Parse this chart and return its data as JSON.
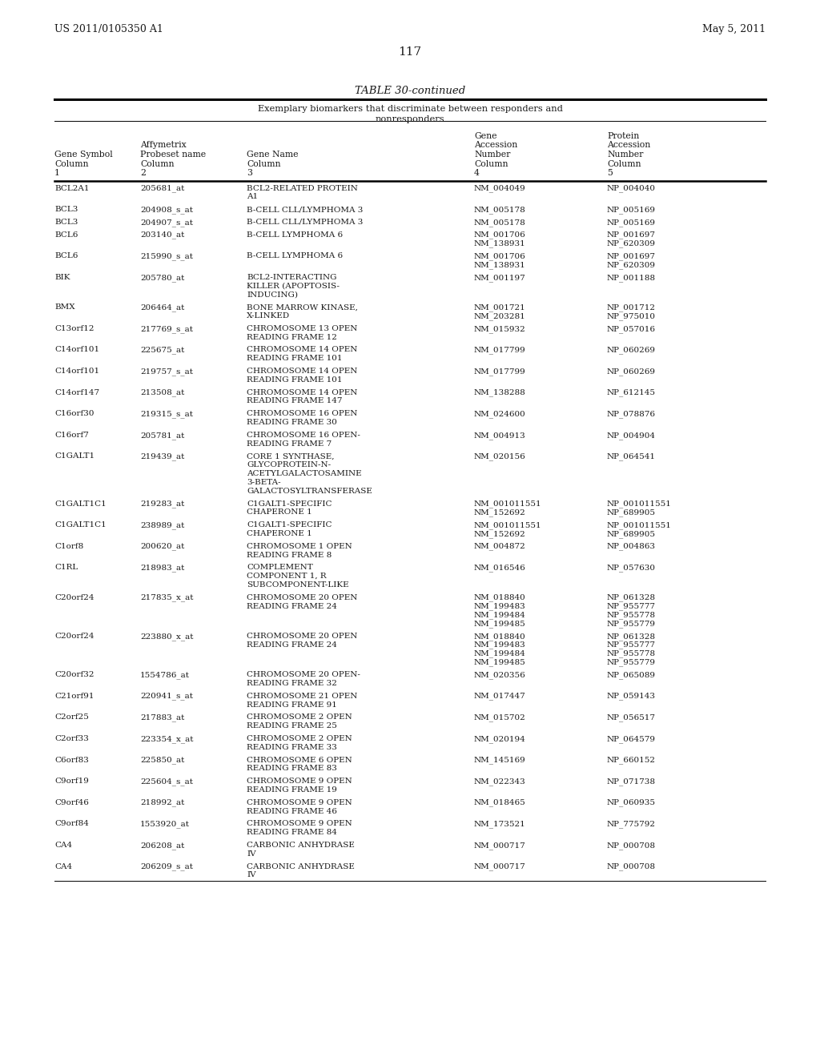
{
  "page_left": "US 2011/0105350 A1",
  "page_right": "May 5, 2011",
  "page_number": "117",
  "table_title": "TABLE 30-continued",
  "table_subtitle1": "Exemplary biomarkers that discriminate between responders and",
  "table_subtitle2": "nonresponders",
  "bg_color": "#ffffff",
  "text_color": "#1a1a1a",
  "rows": [
    [
      "BCL2A1",
      "205681_at",
      "BCL2-RELATED PROTEIN\nA1",
      "NM_004049",
      "NP_004040"
    ],
    [
      "BCL3",
      "204908_s_at",
      "B-CELL CLL/LYMPHOMA 3",
      "NM_005178",
      "NP_005169"
    ],
    [
      "BCL3",
      "204907_s_at",
      "B-CELL CLL/LYMPHOMA 3",
      "NM_005178",
      "NP_005169"
    ],
    [
      "BCL6",
      "203140_at",
      "B-CELL LYMPHOMA 6",
      "NM_001706\nNM_138931",
      "NP_001697\nNP_620309"
    ],
    [
      "BCL6",
      "215990_s_at",
      "B-CELL LYMPHOMA 6",
      "NM_001706\nNM_138931",
      "NP_001697\nNP_620309"
    ],
    [
      "BIK",
      "205780_at",
      "BCL2-INTERACTING\nKILLER (APOPTOSIS-\nINDUCING)",
      "NM_001197",
      "NP_001188"
    ],
    [
      "BMX",
      "206464_at",
      "BONE MARROW KINASE,\nX-LINKED",
      "NM_001721\nNM_203281",
      "NP_001712\nNP_975010"
    ],
    [
      "C13orf12",
      "217769_s_at",
      "CHROMOSOME 13 OPEN\nREADING FRAME 12",
      "NM_015932",
      "NP_057016"
    ],
    [
      "C14orf101",
      "225675_at",
      "CHROMOSOME 14 OPEN\nREADING FRAME 101",
      "NM_017799",
      "NP_060269"
    ],
    [
      "C14orf101",
      "219757_s_at",
      "CHROMOSOME 14 OPEN\nREADING FRAME 101",
      "NM_017799",
      "NP_060269"
    ],
    [
      "C14orf147",
      "213508_at",
      "CHROMOSOME 14 OPEN\nREADING FRAME 147",
      "NM_138288",
      "NP_612145"
    ],
    [
      "C16orf30",
      "219315_s_at",
      "CHROMOSOME 16 OPEN\nREADING FRAME 30",
      "NM_024600",
      "NP_078876"
    ],
    [
      "C16orf7",
      "205781_at",
      "CHROMOSOME 16 OPEN-\nREADING FRAME 7",
      "NM_004913",
      "NP_004904"
    ],
    [
      "C1GALT1",
      "219439_at",
      "CORE 1 SYNTHASE,\nGLYCOPROTEIN-N-\nACETYLGALACTOSAMINE\n3-BETA-\nGALACTOSYLTRANSFERASE",
      "NM_020156",
      "NP_064541"
    ],
    [
      "C1GALT1C1",
      "219283_at",
      "C1GALT1-SPECIFIC\nCHAPERONE 1",
      "NM_001011551\nNM_152692",
      "NP_001011551\nNP_689905"
    ],
    [
      "C1GALT1C1",
      "238989_at",
      "C1GALT1-SPECIFIC\nCHAPERONE 1",
      "NM_001011551\nNM_152692",
      "NP_001011551\nNP_689905"
    ],
    [
      "C1orf8",
      "200620_at",
      "CHROMOSOME 1 OPEN\nREADING FRAME 8",
      "NM_004872",
      "NP_004863"
    ],
    [
      "C1RL",
      "218983_at",
      "COMPLEMENT\nCOMPONENT 1, R\nSUBCOMPONENT-LIKE",
      "NM_016546",
      "NP_057630"
    ],
    [
      "C20orf24",
      "217835_x_at",
      "CHROMOSOME 20 OPEN\nREADING FRAME 24",
      "NM_018840\nNM_199483\nNM_199484\nNM_199485",
      "NP_061328\nNP_955777\nNP_955778\nNP_955779"
    ],
    [
      "C20orf24",
      "223880_x_at",
      "CHROMOSOME 20 OPEN\nREADING FRAME 24",
      "NM_018840\nNM_199483\nNM_199484\nNM_199485",
      "NP_061328\nNP_955777\nNP_955778\nNP_955779"
    ],
    [
      "C20orf32",
      "1554786_at",
      "CHROMOSOME 20 OPEN-\nREADING FRAME 32",
      "NM_020356",
      "NP_065089"
    ],
    [
      "C21orf91",
      "220941_s_at",
      "CHROMOSOME 21 OPEN\nREADING FRAME 91",
      "NM_017447",
      "NP_059143"
    ],
    [
      "C2orf25",
      "217883_at",
      "CHROMOSOME 2 OPEN\nREADING FRAME 25",
      "NM_015702",
      "NP_056517"
    ],
    [
      "C2orf33",
      "223354_x_at",
      "CHROMOSOME 2 OPEN\nREADING FRAME 33",
      "NM_020194",
      "NP_064579"
    ],
    [
      "C6orf83",
      "225850_at",
      "CHROMOSOME 6 OPEN\nREADING FRAME 83",
      "NM_145169",
      "NP_660152"
    ],
    [
      "C9orf19",
      "225604_s_at",
      "CHROMOSOME 9 OPEN\nREADING FRAME 19",
      "NM_022343",
      "NP_071738"
    ],
    [
      "C9orf46",
      "218992_at",
      "CHROMOSOME 9 OPEN\nREADING FRAME 46",
      "NM_018465",
      "NP_060935"
    ],
    [
      "C9orf84",
      "1553920_at",
      "CHROMOSOME 9 OPEN\nREADING FRAME 84",
      "NM_173521",
      "NP_775792"
    ],
    [
      "CA4",
      "206208_at",
      "CARBONIC ANHYDRASE\nIV",
      "NM_000717",
      "NP_000708"
    ],
    [
      "CA4",
      "206209_s_at",
      "CARBONIC ANHYDRASE\nIV",
      "NM_000717",
      "NP_000708"
    ]
  ]
}
